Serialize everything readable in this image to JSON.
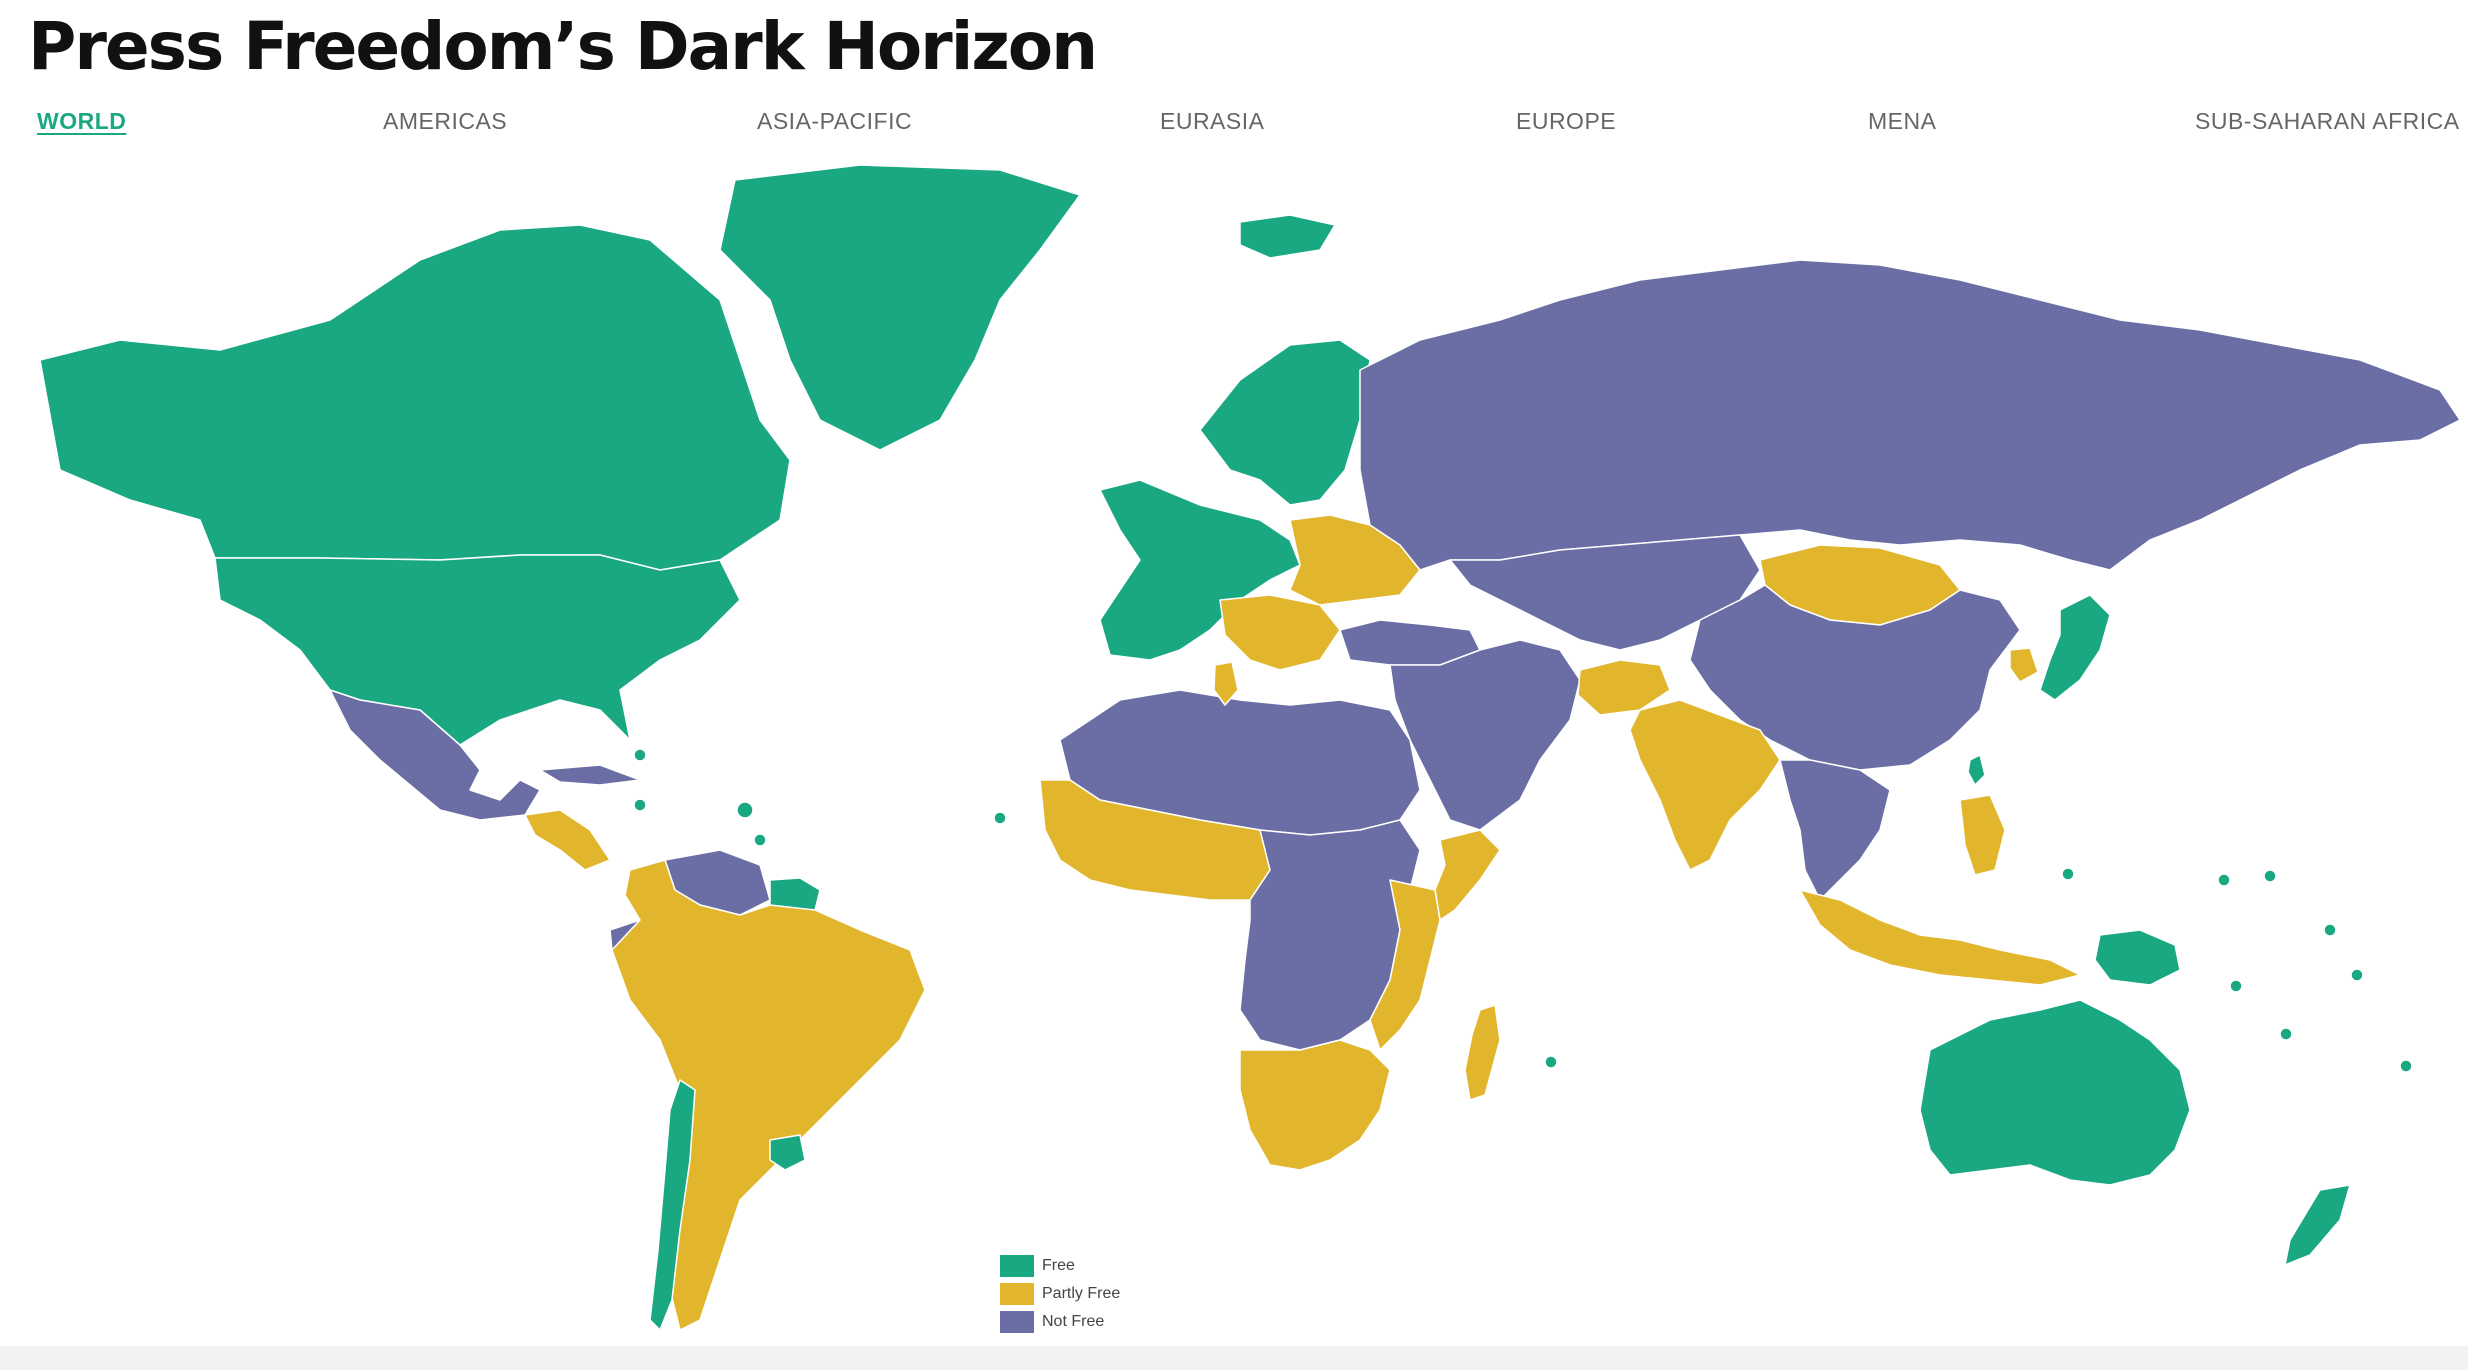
{
  "title": "Press Freedom’s Dark Horizon",
  "tabs": [
    {
      "id": "world",
      "label": "WORLD",
      "active": true
    },
    {
      "id": "americas",
      "label": "AMERICAS",
      "active": false
    },
    {
      "id": "asia-pacific",
      "label": "ASIA-PACIFIC",
      "active": false
    },
    {
      "id": "eurasia",
      "label": "EURASIA",
      "active": false
    },
    {
      "id": "europe",
      "label": "EUROPE",
      "active": false
    },
    {
      "id": "mena",
      "label": "MENA",
      "active": false
    },
    {
      "id": "ssa",
      "label": "SUB-SAHARAN AFRICA",
      "active": false
    }
  ],
  "legend": [
    {
      "key": "free",
      "label": "Free",
      "color": "#1aa882"
    },
    {
      "key": "partly",
      "label": "Partly Free",
      "color": "#e2b62c"
    },
    {
      "key": "notfree",
      "label": "Not Free",
      "color": "#6a6ea4"
    }
  ],
  "colors": {
    "free": "#1aa882",
    "partly": "#e2b62c",
    "notfree": "#6a6ea4",
    "accent": "#1aa882",
    "border": "#ffffff"
  },
  "map": {
    "projection": "equirectangular-like world map",
    "regions": [
      {
        "name": "Greenland",
        "status": "free"
      },
      {
        "name": "Canada",
        "status": "free"
      },
      {
        "name": "United States",
        "status": "free"
      },
      {
        "name": "Mexico",
        "status": "notfree"
      },
      {
        "name": "Central America",
        "status": "partly"
      },
      {
        "name": "Cuba",
        "status": "notfree"
      },
      {
        "name": "Caribbean islands",
        "status": "free"
      },
      {
        "name": "Venezuela",
        "status": "notfree"
      },
      {
        "name": "Guyana / Suriname",
        "status": "free"
      },
      {
        "name": "Ecuador",
        "status": "notfree"
      },
      {
        "name": "South America",
        "status": "partly"
      },
      {
        "name": "Chile",
        "status": "free"
      },
      {
        "name": "Uruguay",
        "status": "free"
      },
      {
        "name": "Iceland",
        "status": "free"
      },
      {
        "name": "Nordic countries",
        "status": "free"
      },
      {
        "name": "Western Europe",
        "status": "free"
      },
      {
        "name": "Eastern Europe",
        "status": "partly"
      },
      {
        "name": "Balkans",
        "status": "partly"
      },
      {
        "name": "Russia",
        "status": "notfree"
      },
      {
        "name": "Central Asia",
        "status": "notfree"
      },
      {
        "name": "Turkey",
        "status": "notfree"
      },
      {
        "name": "Middle East",
        "status": "notfree"
      },
      {
        "name": "North Africa",
        "status": "notfree"
      },
      {
        "name": "Tunisia",
        "status": "partly"
      },
      {
        "name": "West Africa",
        "status": "partly"
      },
      {
        "name": "Central Africa",
        "status": "notfree"
      },
      {
        "name": "East Africa",
        "status": "partly"
      },
      {
        "name": "Somalia",
        "status": "partly"
      },
      {
        "name": "Southern Africa",
        "status": "partly"
      },
      {
        "name": "Madagascar",
        "status": "partly"
      },
      {
        "name": "Mongolia",
        "status": "partly"
      },
      {
        "name": "China",
        "status": "notfree"
      },
      {
        "name": "Afghanistan",
        "status": "partly"
      },
      {
        "name": "India",
        "status": "partly"
      },
      {
        "name": "Southeast Asia mainland",
        "status": "notfree"
      },
      {
        "name": "Indonesia",
        "status": "partly"
      },
      {
        "name": "Philippines",
        "status": "partly"
      },
      {
        "name": "Japan",
        "status": "free"
      },
      {
        "name": "South Korea",
        "status": "partly"
      },
      {
        "name": "Taiwan",
        "status": "free"
      },
      {
        "name": "Papua New Guinea",
        "status": "free"
      },
      {
        "name": "Australia",
        "status": "free"
      },
      {
        "name": "New Zealand",
        "status": "free"
      },
      {
        "name": "Pacific islands",
        "status": "free"
      }
    ]
  }
}
